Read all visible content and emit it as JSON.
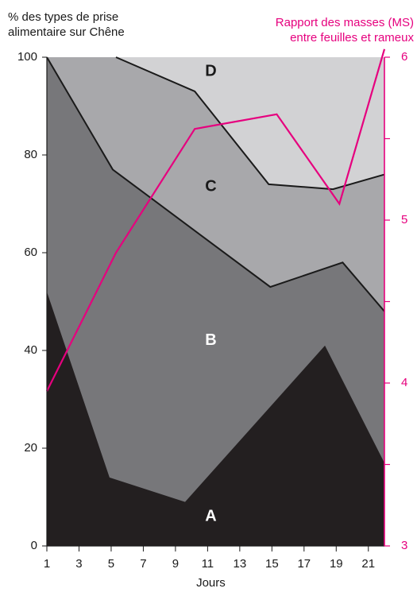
{
  "chart_data": {
    "type": "area",
    "ylabel_left": [
      "% des types de prise",
      "alimentaire sur Chêne"
    ],
    "ylabel_right": [
      "Rapport des masses (MS)",
      "entre feuilles et rameux"
    ],
    "xlabel": "Jours",
    "x_ticks": [
      "1",
      "3",
      "5",
      "7",
      "9",
      "11",
      "13",
      "15",
      "17",
      "19",
      "21"
    ],
    "y_left_ticks": [
      "0",
      "20",
      "40",
      "60",
      "80",
      "100"
    ],
    "y_right_ticks": [
      "3",
      "4",
      "5",
      "6"
    ],
    "y_left_range": [
      0,
      100
    ],
    "y_right_range": [
      3,
      6
    ],
    "x_range": [
      1,
      22
    ],
    "stack_boundaries": {
      "A_top": [
        [
          1,
          52
        ],
        [
          4.9,
          14
        ],
        [
          9.6,
          9
        ],
        [
          18.3,
          41
        ],
        [
          22,
          17
        ]
      ],
      "B_top": [
        [
          1,
          100
        ],
        [
          5.1,
          77
        ],
        [
          14.9,
          53
        ],
        [
          19.4,
          58
        ],
        [
          22,
          48
        ]
      ],
      "C_top": [
        [
          5.3,
          100
        ],
        [
          10.2,
          93
        ],
        [
          14.8,
          74
        ],
        [
          18.8,
          73
        ],
        [
          22,
          76
        ]
      ],
      "D_top": [
        [
          1,
          100
        ],
        [
          22,
          100
        ]
      ]
    },
    "area_labels": [
      "A",
      "B",
      "C",
      "D"
    ],
    "area_colors": [
      "#231f20",
      "#77777a",
      "#a8a8ab",
      "#d2d2d4"
    ],
    "ratio_series": [
      [
        1,
        3.95
      ],
      [
        5.3,
        4.8
      ],
      [
        10.2,
        5.56
      ],
      [
        15.3,
        5.65
      ],
      [
        19.2,
        5.1
      ],
      [
        22,
        6.05
      ]
    ],
    "ratio_color": "#e6007e"
  }
}
